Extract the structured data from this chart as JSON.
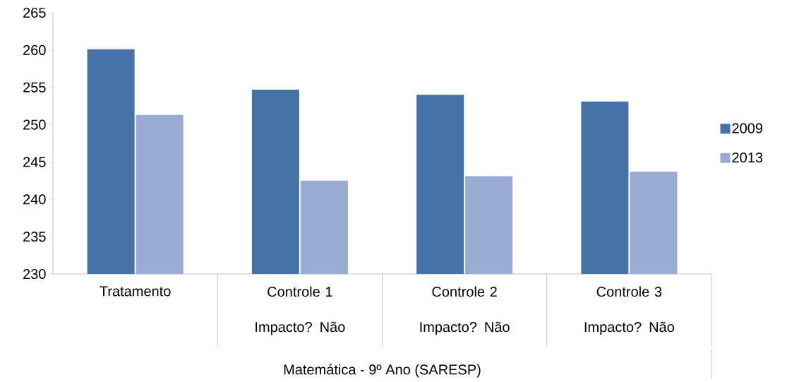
{
  "chart_data": {
    "type": "bar",
    "categories": [
      "Tratamento",
      "Controle 1 Impacto? Não",
      "Controle 2 Impacto? Não",
      "Controle 3 Impacto? Não"
    ],
    "annotations": [
      "Matemática - 9º Ano (SARESP)"
    ],
    "series": [
      {
        "name": "2009",
        "color": "#4573a7",
        "values": [
          260.1,
          254.7,
          254.0,
          253.1
        ]
      },
      {
        "name": "2013",
        "color": "#98acd3",
        "values": [
          251.3,
          242.5,
          243.1,
          243.7
        ]
      }
    ],
    "ylim": [
      230,
      265
    ],
    "yticks": [
      230,
      235,
      240,
      245,
      250,
      255,
      260,
      265
    ],
    "grid": false,
    "legend": "right"
  }
}
